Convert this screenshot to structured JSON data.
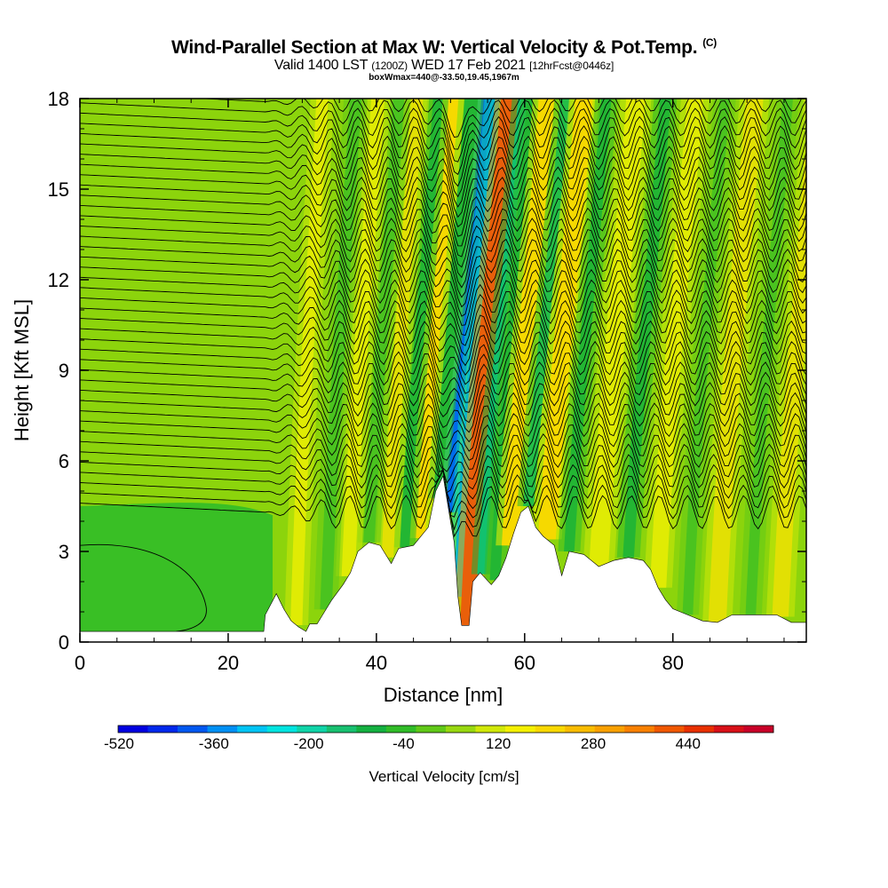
{
  "title": {
    "main": "Wind-Parallel Section at Max W: Vertical Velocity & Pot.Temp.",
    "copyright": "(C)",
    "valid": "Valid 1400 LST",
    "zulu": "(1200Z)",
    "date": "WED 17 Feb 2021",
    "fcst": "[12hrFcst@0446z]",
    "boxline": "boxWmax=440@-33.50,19.45,1967m"
  },
  "chart_data": {
    "type": "heatmap",
    "xlabel": "Distance [nm]",
    "ylabel": "Height [Kft MSL]",
    "xlim": [
      0,
      98
    ],
    "ylim": [
      0,
      18
    ],
    "xticks": [
      "0",
      "20",
      "40",
      "60",
      "80"
    ],
    "yticks": [
      "0",
      "3",
      "6",
      "9",
      "12",
      "15",
      "18"
    ],
    "colorbar": {
      "title": "Vertical Velocity [cm/s]",
      "labels": [
        "-520",
        "-360",
        "-200",
        "-40",
        "120",
        "280",
        "440"
      ],
      "colors": [
        "#0000e0",
        "#0028ec",
        "#0058f0",
        "#0090f4",
        "#00c4f4",
        "#00e4e0",
        "#10d4a8",
        "#18c070",
        "#14b040",
        "#30bc28",
        "#60c818",
        "#98d810",
        "#d0e808",
        "#f4f000",
        "#f8d800",
        "#f8bc00",
        "#f8a000",
        "#f88000",
        "#f05800",
        "#e83000",
        "#d81018",
        "#c80028"
      ]
    },
    "terrain_kft": [
      [
        0,
        0.35
      ],
      [
        24.8,
        0.35
      ],
      [
        25,
        0.9
      ],
      [
        26.5,
        1.6
      ],
      [
        27.5,
        1.1
      ],
      [
        28.5,
        0.7
      ],
      [
        29.5,
        0.5
      ],
      [
        30.5,
        0.35
      ],
      [
        31,
        0.6
      ],
      [
        32,
        0.6
      ],
      [
        33,
        1.0
      ],
      [
        34,
        1.4
      ],
      [
        35.5,
        1.9
      ],
      [
        36.5,
        2.3
      ],
      [
        37.5,
        3.0
      ],
      [
        39,
        3.3
      ],
      [
        40.5,
        3.2
      ],
      [
        41,
        3.0
      ],
      [
        42,
        2.6
      ],
      [
        43,
        3.1
      ],
      [
        45,
        3.2
      ],
      [
        47,
        3.8
      ],
      [
        48,
        5.0
      ],
      [
        49,
        5.5
      ],
      [
        50,
        4.0
      ],
      [
        50.5,
        3.3
      ],
      [
        51,
        1.5
      ],
      [
        51.5,
        0.55
      ],
      [
        52.5,
        0.55
      ],
      [
        53,
        2.0
      ],
      [
        54,
        2.3
      ],
      [
        55.5,
        1.9
      ],
      [
        56.5,
        2.2
      ],
      [
        57.5,
        2.8
      ],
      [
        58.5,
        3.6
      ],
      [
        59.5,
        4.3
      ],
      [
        60.5,
        4.5
      ],
      [
        61.5,
        3.8
      ],
      [
        62.5,
        3.5
      ],
      [
        64,
        3.2
      ],
      [
        65,
        2.2
      ],
      [
        66,
        3.0
      ],
      [
        68,
        2.9
      ],
      [
        70,
        2.5
      ],
      [
        72,
        2.7
      ],
      [
        74,
        2.8
      ],
      [
        76,
        2.7
      ],
      [
        77,
        2.4
      ],
      [
        78,
        1.8
      ],
      [
        79,
        1.4
      ],
      [
        80,
        1.1
      ],
      [
        82,
        0.9
      ],
      [
        84,
        0.7
      ],
      [
        86,
        0.65
      ],
      [
        88,
        0.9
      ],
      [
        90,
        0.9
      ],
      [
        92,
        0.9
      ],
      [
        94,
        0.9
      ],
      [
        96,
        0.65
      ],
      [
        98,
        0.65
      ]
    ],
    "bands": [
      {
        "x": 49.8,
        "w": 1.3,
        "lean": 5,
        "value": -520
      },
      {
        "x": 51.0,
        "w": 1.2,
        "lean": 5,
        "value": -360
      },
      {
        "x": 52.5,
        "w": 2.4,
        "lean": 5.5,
        "value": 440
      },
      {
        "x": 54.2,
        "w": 1.2,
        "lean": 5.5,
        "value": -200
      },
      {
        "x": 47.8,
        "w": 1.8,
        "lean": 5,
        "value": -120
      },
      {
        "x": 45.8,
        "w": 1.5,
        "lean": 4.5,
        "value": 200
      },
      {
        "x": 43.8,
        "w": 1.3,
        "lean": 4.5,
        "value": -100
      },
      {
        "x": 41.5,
        "w": 1.6,
        "lean": 4,
        "value": 160
      },
      {
        "x": 39.0,
        "w": 1.5,
        "lean": 4,
        "value": -60
      },
      {
        "x": 36.2,
        "w": 1.8,
        "lean": 4,
        "value": 120
      },
      {
        "x": 33.2,
        "w": 1.6,
        "lean": 4,
        "value": -60
      },
      {
        "x": 29.2,
        "w": 1.6,
        "lean": 3.5,
        "value": 100
      },
      {
        "x": 56.0,
        "w": 1.4,
        "lean": 5,
        "value": -120
      },
      {
        "x": 58.0,
        "w": 2.2,
        "lean": 5,
        "value": 200
      },
      {
        "x": 60.5,
        "w": 1.4,
        "lean": 5,
        "value": -160
      },
      {
        "x": 63.0,
        "w": 2.4,
        "lean": 5,
        "value": 220
      },
      {
        "x": 66.0,
        "w": 1.4,
        "lean": 5,
        "value": -100
      },
      {
        "x": 70.0,
        "w": 2.6,
        "lean": 5,
        "value": 120
      },
      {
        "x": 74.0,
        "w": 1.5,
        "lean": 5,
        "value": -100
      },
      {
        "x": 78.0,
        "w": 2.2,
        "lean": 5,
        "value": 120
      },
      {
        "x": 82.0,
        "w": 1.4,
        "lean": 5,
        "value": -80
      },
      {
        "x": 86.0,
        "w": 2.4,
        "lean": 5,
        "value": 160
      },
      {
        "x": 90.5,
        "w": 1.4,
        "lean": 5,
        "value": -60
      },
      {
        "x": 94.5,
        "w": 2.2,
        "lean": 5,
        "value": 160
      }
    ]
  }
}
